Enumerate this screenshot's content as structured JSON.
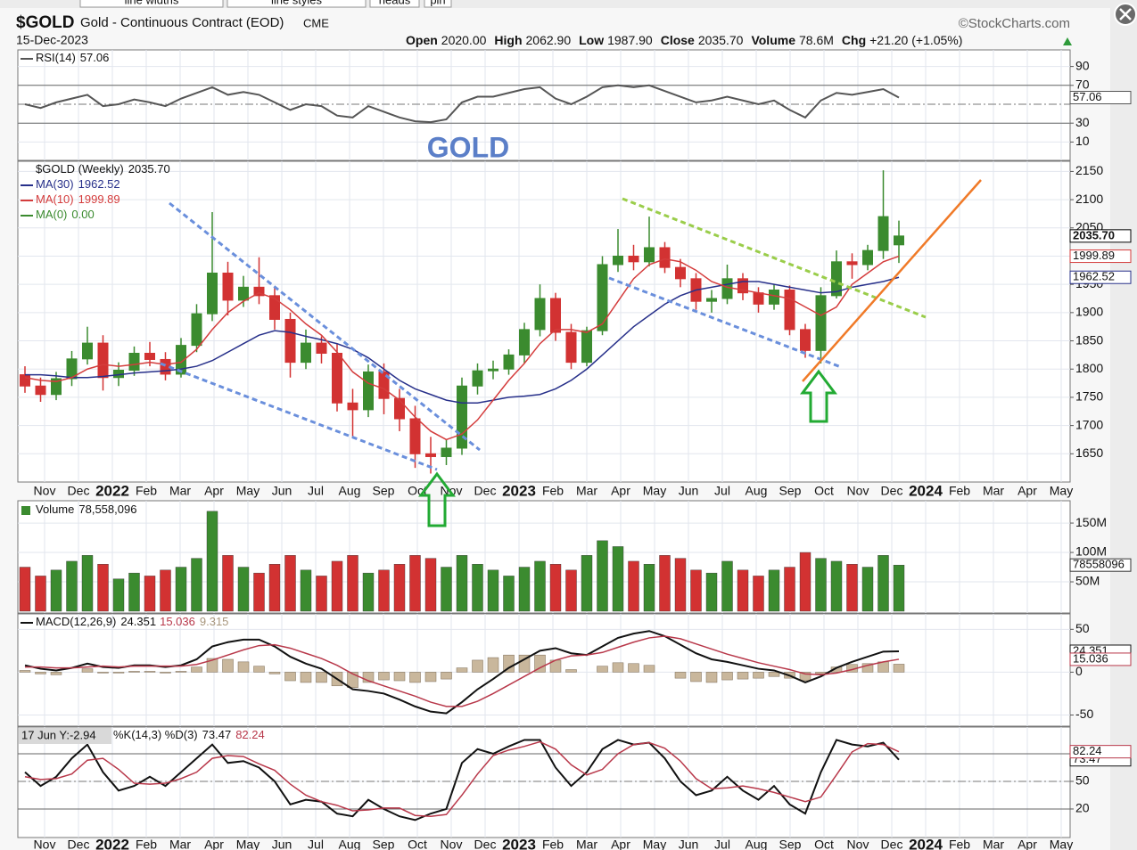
{
  "toolbar": [
    "line widths",
    "line styles",
    "heads",
    "pin"
  ],
  "header": {
    "symbol": "$GOLD",
    "name": "Gold - Continuous Contract (EOD)",
    "exchange": "CME",
    "date": "15-Dec-2023",
    "source": "©StockCharts.com",
    "quote": [
      {
        "label": "Open",
        "value": "2020.00"
      },
      {
        "label": "High",
        "value": "2062.90"
      },
      {
        "label": "Low",
        "value": "1987.90"
      },
      {
        "label": "Close",
        "value": "2035.70"
      },
      {
        "label": "Volume",
        "value": "78.6M"
      },
      {
        "label": "Chg",
        "value": "+21.20 (+1.05%)"
      }
    ]
  },
  "chart_data": [
    {
      "type": "line",
      "annotation": "GOLD",
      "ylim": [
        0,
        100
      ],
      "yticks": [
        10,
        30,
        70,
        90
      ],
      "levels": [
        30,
        50,
        70
      ],
      "series": [
        {
          "name": "RSI(14)",
          "color": "#555555",
          "values": [
            50,
            46,
            52,
            56,
            60,
            48,
            50,
            55,
            52,
            48,
            56,
            62,
            68,
            60,
            63,
            60,
            52,
            44,
            50,
            48,
            38,
            36,
            48,
            42,
            36,
            32,
            31,
            34,
            52,
            58,
            58,
            62,
            66,
            68,
            56,
            50,
            58,
            68,
            70,
            68,
            70,
            64,
            58,
            52,
            54,
            58,
            54,
            50,
            54,
            44,
            36,
            54,
            62,
            60,
            63,
            66,
            57.06
          ]
        }
      ]
    },
    {
      "type": "candlestick",
      "ylim": [
        1600,
        2168
      ],
      "yticks": [
        1650,
        1700,
        1750,
        1800,
        1850,
        1900,
        1950,
        2000,
        2050,
        2100,
        2150
      ],
      "x_labels": [
        "Nov",
        "Dec",
        "2022",
        "Feb",
        "Mar",
        "Apr",
        "May",
        "Jun",
        "Jul",
        "Aug",
        "Sep",
        "Oct",
        "Nov",
        "Dec",
        "2023",
        "Feb",
        "Mar",
        "Apr",
        "May",
        "Jun",
        "Jul",
        "Aug",
        "Sep",
        "Oct",
        "Nov",
        "Dec",
        "2024",
        "Feb",
        "Mar",
        "Apr",
        "May"
      ],
      "up_color": "#3b8b2f",
      "down_color": "#d23232",
      "series": [
        {
          "name": "$GOLD (Weekly)",
          "close_label": "2035.70",
          "open": [
            1790,
            1770,
            1755,
            1783,
            1818,
            1846,
            1785,
            1798,
            1828,
            1817,
            1791,
            1842,
            1898,
            1970,
            1922,
            1945,
            1930,
            1888,
            1812,
            1846,
            1828,
            1740,
            1728,
            1795,
            1748,
            1712,
            1650,
            1645,
            1660,
            1770,
            1797,
            1800,
            1825,
            1870,
            1925,
            1865,
            1812,
            1868,
            1985,
            2000,
            1990,
            2015,
            1980,
            1960,
            1920,
            1925,
            1960,
            1935,
            1915,
            1940,
            1870,
            1833,
            1930,
            1990,
            1985,
            2010,
            2020
          ],
          "high": [
            1805,
            1785,
            1795,
            1832,
            1875,
            1860,
            1812,
            1840,
            1848,
            1830,
            1855,
            1915,
            2078,
            1990,
            1965,
            1998,
            1945,
            1900,
            1870,
            1858,
            1845,
            1765,
            1808,
            1810,
            1765,
            1735,
            1680,
            1675,
            1785,
            1810,
            1815,
            1835,
            1882,
            1950,
            1935,
            1880,
            1875,
            2000,
            2048,
            2020,
            2070,
            2025,
            1995,
            1970,
            1940,
            1985,
            1970,
            1945,
            1950,
            1948,
            1880,
            1945,
            2010,
            2005,
            2020,
            2152,
            2062.9
          ],
          "low": [
            1758,
            1742,
            1745,
            1770,
            1808,
            1762,
            1770,
            1788,
            1805,
            1780,
            1785,
            1830,
            1885,
            1895,
            1910,
            1915,
            1870,
            1785,
            1800,
            1810,
            1725,
            1680,
            1715,
            1720,
            1690,
            1625,
            1615,
            1630,
            1648,
            1755,
            1782,
            1790,
            1810,
            1858,
            1850,
            1800,
            1805,
            1860,
            1972,
            1975,
            1982,
            1970,
            1945,
            1905,
            1900,
            1915,
            1922,
            1900,
            1905,
            1860,
            1820,
            1810,
            1925,
            1960,
            1975,
            1995,
            1987.9
          ],
          "close": [
            1770,
            1755,
            1783,
            1818,
            1846,
            1785,
            1798,
            1828,
            1817,
            1791,
            1842,
            1898,
            1970,
            1922,
            1945,
            1930,
            1888,
            1812,
            1846,
            1828,
            1740,
            1728,
            1795,
            1748,
            1712,
            1650,
            1645,
            1660,
            1770,
            1797,
            1800,
            1825,
            1870,
            1925,
            1865,
            1812,
            1868,
            1985,
            2000,
            1990,
            2015,
            1980,
            1960,
            1920,
            1925,
            1960,
            1935,
            1915,
            1940,
            1870,
            1833,
            1930,
            1990,
            1985,
            2010,
            2070,
            2035.7
          ]
        }
      ],
      "overlays": [
        {
          "name": "MA(30)",
          "color": "#27308a",
          "values": [
            1790,
            1790,
            1788,
            1785,
            1785,
            1787,
            1790,
            1793,
            1795,
            1797,
            1800,
            1805,
            1815,
            1830,
            1845,
            1860,
            1868,
            1865,
            1858,
            1852,
            1845,
            1835,
            1820,
            1800,
            1780,
            1765,
            1755,
            1745,
            1740,
            1740,
            1745,
            1750,
            1752,
            1755,
            1765,
            1780,
            1800,
            1825,
            1850,
            1875,
            1895,
            1915,
            1930,
            1940,
            1945,
            1950,
            1955,
            1955,
            1950,
            1945,
            1940,
            1935,
            1937,
            1945,
            1950,
            1955,
            1962.52
          ]
        },
        {
          "name": "MA(10)",
          "color": "#d43c3c",
          "values": [
            1785,
            1780,
            1778,
            1785,
            1800,
            1808,
            1805,
            1808,
            1812,
            1808,
            1812,
            1835,
            1870,
            1900,
            1920,
            1935,
            1925,
            1905,
            1880,
            1860,
            1830,
            1795,
            1775,
            1765,
            1745,
            1715,
            1690,
            1675,
            1685,
            1710,
            1745,
            1780,
            1810,
            1845,
            1870,
            1870,
            1865,
            1880,
            1920,
            1960,
            1985,
            1995,
            1990,
            1975,
            1955,
            1945,
            1940,
            1935,
            1930,
            1925,
            1910,
            1895,
            1910,
            1950,
            1970,
            1990,
            1999.89
          ]
        },
        {
          "name": "MA(0)",
          "color": "#3a8a2e",
          "value_label": "0.00"
        }
      ]
    },
    {
      "type": "bar",
      "title": "Volume",
      "legend_label": "78,558,096",
      "axis_label": "78558096",
      "ylim": [
        0,
        188
      ],
      "yticks": [
        {
          "value": 50,
          "label": "50M"
        },
        {
          "value": 100,
          "label": "100M"
        },
        {
          "value": 150,
          "label": "150M"
        }
      ],
      "values": [
        75,
        60,
        70,
        85,
        95,
        80,
        55,
        65,
        60,
        70,
        75,
        90,
        170,
        95,
        75,
        65,
        80,
        95,
        70,
        60,
        85,
        95,
        65,
        70,
        80,
        95,
        90,
        75,
        95,
        80,
        70,
        60,
        75,
        85,
        80,
        70,
        95,
        120,
        110,
        85,
        80,
        95,
        90,
        70,
        65,
        85,
        70,
        60,
        70,
        75,
        100,
        90,
        85,
        80,
        75,
        95,
        78.558096
      ]
    },
    {
      "type": "line",
      "title": "MACD(12,26,9)",
      "ylim": [
        -63,
        68
      ],
      "yticks": [
        -50,
        0,
        50
      ],
      "series": [
        {
          "kind": "bar",
          "color": "#c9b79c",
          "values": [
            2,
            -2,
            -3,
            0,
            4,
            -1,
            -1,
            1,
            1,
            -1,
            1,
            6,
            16,
            15,
            12,
            7,
            -2,
            -10,
            -12,
            -12,
            -16,
            -18,
            -12,
            -9,
            -10,
            -12,
            -11,
            -8,
            5,
            14,
            17,
            20,
            20,
            20,
            14,
            3,
            0,
            7,
            11,
            10,
            8,
            0,
            -7,
            -11,
            -12,
            -9,
            -8,
            -7,
            -5,
            -7,
            -10,
            -2,
            6,
            9,
            10,
            12,
            9.315
          ]
        },
        {
          "color": "#111111",
          "values": [
            8,
            4,
            2,
            5,
            10,
            6,
            5,
            8,
            8,
            6,
            8,
            15,
            30,
            35,
            38,
            38,
            30,
            18,
            10,
            4,
            -8,
            -20,
            -22,
            -25,
            -32,
            -40,
            -46,
            -48,
            -35,
            -20,
            -8,
            5,
            15,
            25,
            28,
            22,
            20,
            30,
            40,
            45,
            48,
            42,
            32,
            22,
            15,
            12,
            8,
            4,
            2,
            -4,
            -12,
            -5,
            5,
            12,
            18,
            24,
            24.351
          ]
        },
        {
          "color": "#b8384a",
          "values": [
            6,
            6,
            5,
            5,
            6,
            7,
            6,
            7,
            7,
            7,
            7,
            9,
            14,
            20,
            26,
            31,
            32,
            28,
            22,
            16,
            8,
            -2,
            -10,
            -16,
            -22,
            -28,
            -35,
            -40,
            -40,
            -34,
            -25,
            -15,
            -5,
            5,
            14,
            19,
            20,
            23,
            29,
            35,
            40,
            42,
            39,
            33,
            27,
            21,
            16,
            11,
            7,
            3,
            -2,
            -3,
            -1,
            3,
            8,
            12,
            15.036
          ]
        }
      ]
    },
    {
      "type": "line",
      "title": "%K(14,3) %D(3)",
      "tooltip": "17 Jun Y:-2.94",
      "ylim": [
        -11,
        109
      ],
      "yticks": [
        20,
        50,
        80
      ],
      "levels": [
        20,
        50,
        80
      ],
      "series": [
        {
          "color": "#111111",
          "values": [
            60,
            45,
            55,
            75,
            90,
            60,
            40,
            45,
            55,
            45,
            60,
            75,
            90,
            70,
            72,
            65,
            50,
            25,
            30,
            28,
            15,
            12,
            30,
            20,
            12,
            8,
            15,
            20,
            70,
            85,
            80,
            88,
            95,
            95,
            65,
            45,
            60,
            85,
            95,
            90,
            92,
            75,
            50,
            35,
            40,
            55,
            40,
            30,
            45,
            25,
            15,
            60,
            95,
            90,
            88,
            92,
            73.47
          ]
        },
        {
          "color": "#b8384a",
          "values": [
            55,
            52,
            53,
            58,
            73,
            75,
            63,
            48,
            47,
            48,
            53,
            60,
            75,
            78,
            77,
            69,
            62,
            47,
            35,
            28,
            24,
            18,
            19,
            21,
            21,
            13,
            12,
            14,
            35,
            58,
            78,
            84,
            88,
            93,
            85,
            68,
            57,
            63,
            80,
            90,
            92,
            86,
            72,
            53,
            42,
            43,
            45,
            42,
            38,
            33,
            28,
            33,
            57,
            82,
            91,
            90,
            82.24
          ]
        }
      ]
    }
  ]
}
